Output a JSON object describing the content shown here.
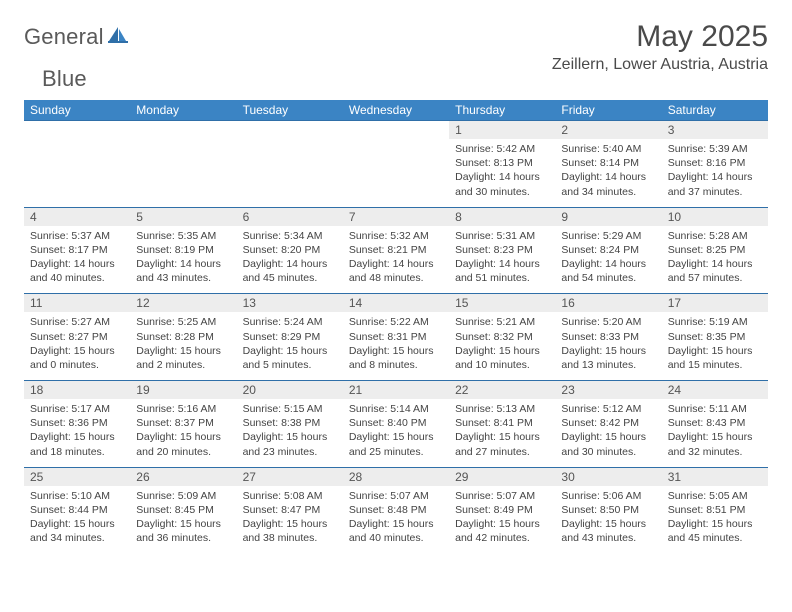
{
  "brand": {
    "word1": "General",
    "word2": "Blue"
  },
  "title": "May 2025",
  "location": "Zeillern, Lower Austria, Austria",
  "weekdays": [
    "Sunday",
    "Monday",
    "Tuesday",
    "Wednesday",
    "Thursday",
    "Friday",
    "Saturday"
  ],
  "colors": {
    "header_bg": "#3b84c4",
    "header_text": "#ffffff",
    "day_band_bg": "#ededed",
    "row_divider": "#2f6fa8",
    "body_text": "#444444",
    "title_text": "#4a4a4a",
    "logo_gray": "#5a5a5a",
    "logo_blue": "#2f7cc0",
    "page_bg": "#ffffff"
  },
  "typography": {
    "title_fontsize_pt": 22,
    "location_fontsize_pt": 12,
    "weekday_fontsize_pt": 9,
    "daynum_fontsize_pt": 9,
    "detail_fontsize_pt": 8
  },
  "weeks": [
    [
      null,
      null,
      null,
      null,
      {
        "n": "1",
        "sr": "Sunrise: 5:42 AM",
        "ss": "Sunset: 8:13 PM",
        "dl": "Daylight: 14 hours and 30 minutes."
      },
      {
        "n": "2",
        "sr": "Sunrise: 5:40 AM",
        "ss": "Sunset: 8:14 PM",
        "dl": "Daylight: 14 hours and 34 minutes."
      },
      {
        "n": "3",
        "sr": "Sunrise: 5:39 AM",
        "ss": "Sunset: 8:16 PM",
        "dl": "Daylight: 14 hours and 37 minutes."
      }
    ],
    [
      {
        "n": "4",
        "sr": "Sunrise: 5:37 AM",
        "ss": "Sunset: 8:17 PM",
        "dl": "Daylight: 14 hours and 40 minutes."
      },
      {
        "n": "5",
        "sr": "Sunrise: 5:35 AM",
        "ss": "Sunset: 8:19 PM",
        "dl": "Daylight: 14 hours and 43 minutes."
      },
      {
        "n": "6",
        "sr": "Sunrise: 5:34 AM",
        "ss": "Sunset: 8:20 PM",
        "dl": "Daylight: 14 hours and 45 minutes."
      },
      {
        "n": "7",
        "sr": "Sunrise: 5:32 AM",
        "ss": "Sunset: 8:21 PM",
        "dl": "Daylight: 14 hours and 48 minutes."
      },
      {
        "n": "8",
        "sr": "Sunrise: 5:31 AM",
        "ss": "Sunset: 8:23 PM",
        "dl": "Daylight: 14 hours and 51 minutes."
      },
      {
        "n": "9",
        "sr": "Sunrise: 5:29 AM",
        "ss": "Sunset: 8:24 PM",
        "dl": "Daylight: 14 hours and 54 minutes."
      },
      {
        "n": "10",
        "sr": "Sunrise: 5:28 AM",
        "ss": "Sunset: 8:25 PM",
        "dl": "Daylight: 14 hours and 57 minutes."
      }
    ],
    [
      {
        "n": "11",
        "sr": "Sunrise: 5:27 AM",
        "ss": "Sunset: 8:27 PM",
        "dl": "Daylight: 15 hours and 0 minutes."
      },
      {
        "n": "12",
        "sr": "Sunrise: 5:25 AM",
        "ss": "Sunset: 8:28 PM",
        "dl": "Daylight: 15 hours and 2 minutes."
      },
      {
        "n": "13",
        "sr": "Sunrise: 5:24 AM",
        "ss": "Sunset: 8:29 PM",
        "dl": "Daylight: 15 hours and 5 minutes."
      },
      {
        "n": "14",
        "sr": "Sunrise: 5:22 AM",
        "ss": "Sunset: 8:31 PM",
        "dl": "Daylight: 15 hours and 8 minutes."
      },
      {
        "n": "15",
        "sr": "Sunrise: 5:21 AM",
        "ss": "Sunset: 8:32 PM",
        "dl": "Daylight: 15 hours and 10 minutes."
      },
      {
        "n": "16",
        "sr": "Sunrise: 5:20 AM",
        "ss": "Sunset: 8:33 PM",
        "dl": "Daylight: 15 hours and 13 minutes."
      },
      {
        "n": "17",
        "sr": "Sunrise: 5:19 AM",
        "ss": "Sunset: 8:35 PM",
        "dl": "Daylight: 15 hours and 15 minutes."
      }
    ],
    [
      {
        "n": "18",
        "sr": "Sunrise: 5:17 AM",
        "ss": "Sunset: 8:36 PM",
        "dl": "Daylight: 15 hours and 18 minutes."
      },
      {
        "n": "19",
        "sr": "Sunrise: 5:16 AM",
        "ss": "Sunset: 8:37 PM",
        "dl": "Daylight: 15 hours and 20 minutes."
      },
      {
        "n": "20",
        "sr": "Sunrise: 5:15 AM",
        "ss": "Sunset: 8:38 PM",
        "dl": "Daylight: 15 hours and 23 minutes."
      },
      {
        "n": "21",
        "sr": "Sunrise: 5:14 AM",
        "ss": "Sunset: 8:40 PM",
        "dl": "Daylight: 15 hours and 25 minutes."
      },
      {
        "n": "22",
        "sr": "Sunrise: 5:13 AM",
        "ss": "Sunset: 8:41 PM",
        "dl": "Daylight: 15 hours and 27 minutes."
      },
      {
        "n": "23",
        "sr": "Sunrise: 5:12 AM",
        "ss": "Sunset: 8:42 PM",
        "dl": "Daylight: 15 hours and 30 minutes."
      },
      {
        "n": "24",
        "sr": "Sunrise: 5:11 AM",
        "ss": "Sunset: 8:43 PM",
        "dl": "Daylight: 15 hours and 32 minutes."
      }
    ],
    [
      {
        "n": "25",
        "sr": "Sunrise: 5:10 AM",
        "ss": "Sunset: 8:44 PM",
        "dl": "Daylight: 15 hours and 34 minutes."
      },
      {
        "n": "26",
        "sr": "Sunrise: 5:09 AM",
        "ss": "Sunset: 8:45 PM",
        "dl": "Daylight: 15 hours and 36 minutes."
      },
      {
        "n": "27",
        "sr": "Sunrise: 5:08 AM",
        "ss": "Sunset: 8:47 PM",
        "dl": "Daylight: 15 hours and 38 minutes."
      },
      {
        "n": "28",
        "sr": "Sunrise: 5:07 AM",
        "ss": "Sunset: 8:48 PM",
        "dl": "Daylight: 15 hours and 40 minutes."
      },
      {
        "n": "29",
        "sr": "Sunrise: 5:07 AM",
        "ss": "Sunset: 8:49 PM",
        "dl": "Daylight: 15 hours and 42 minutes."
      },
      {
        "n": "30",
        "sr": "Sunrise: 5:06 AM",
        "ss": "Sunset: 8:50 PM",
        "dl": "Daylight: 15 hours and 43 minutes."
      },
      {
        "n": "31",
        "sr": "Sunrise: 5:05 AM",
        "ss": "Sunset: 8:51 PM",
        "dl": "Daylight: 15 hours and 45 minutes."
      }
    ]
  ]
}
